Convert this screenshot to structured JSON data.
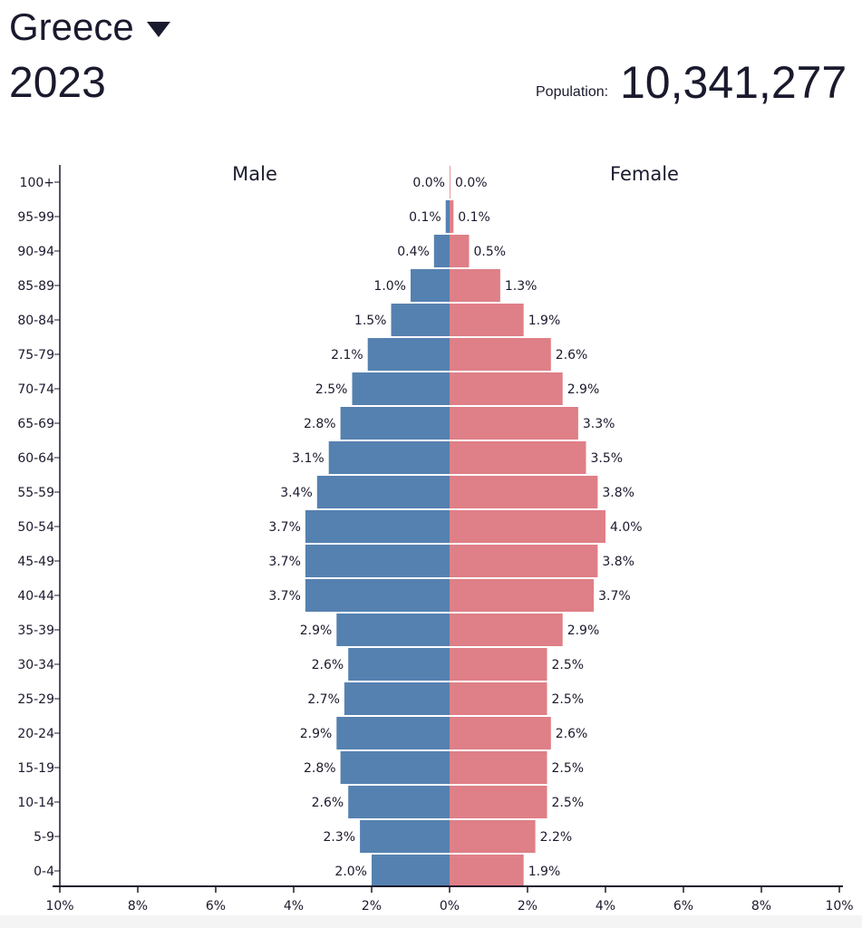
{
  "header": {
    "country": "Greece",
    "year": "2023",
    "population_label": "Population:",
    "population_value": "10,341,277"
  },
  "colors": {
    "male": "#5581b0",
    "female": "#df7f87",
    "text": "#1a1a2e"
  },
  "chart_data": {
    "type": "bar",
    "subtype": "population-pyramid",
    "categories": [
      "100+",
      "95-99",
      "90-94",
      "85-89",
      "80-84",
      "75-79",
      "70-74",
      "65-69",
      "60-64",
      "55-59",
      "50-54",
      "45-49",
      "40-44",
      "35-39",
      "30-34",
      "25-29",
      "20-24",
      "15-19",
      "10-14",
      "5-9",
      "0-4"
    ],
    "series": [
      {
        "name": "Male",
        "values": [
          0.0,
          0.1,
          0.4,
          1.0,
          1.5,
          2.1,
          2.5,
          2.8,
          3.1,
          3.4,
          3.7,
          3.7,
          3.7,
          2.9,
          2.6,
          2.7,
          2.9,
          2.8,
          2.6,
          2.3,
          2.0
        ]
      },
      {
        "name": "Female",
        "values": [
          0.0,
          0.1,
          0.5,
          1.3,
          1.9,
          2.6,
          2.9,
          3.3,
          3.5,
          3.8,
          4.0,
          3.8,
          3.7,
          2.9,
          2.5,
          2.5,
          2.6,
          2.5,
          2.5,
          2.2,
          1.9
        ]
      }
    ],
    "xlim": [
      -10,
      10
    ],
    "xticks": [
      "10%",
      "8%",
      "6%",
      "4%",
      "2%",
      "0%",
      "2%",
      "4%",
      "6%",
      "8%",
      "10%"
    ],
    "unit": "%"
  }
}
